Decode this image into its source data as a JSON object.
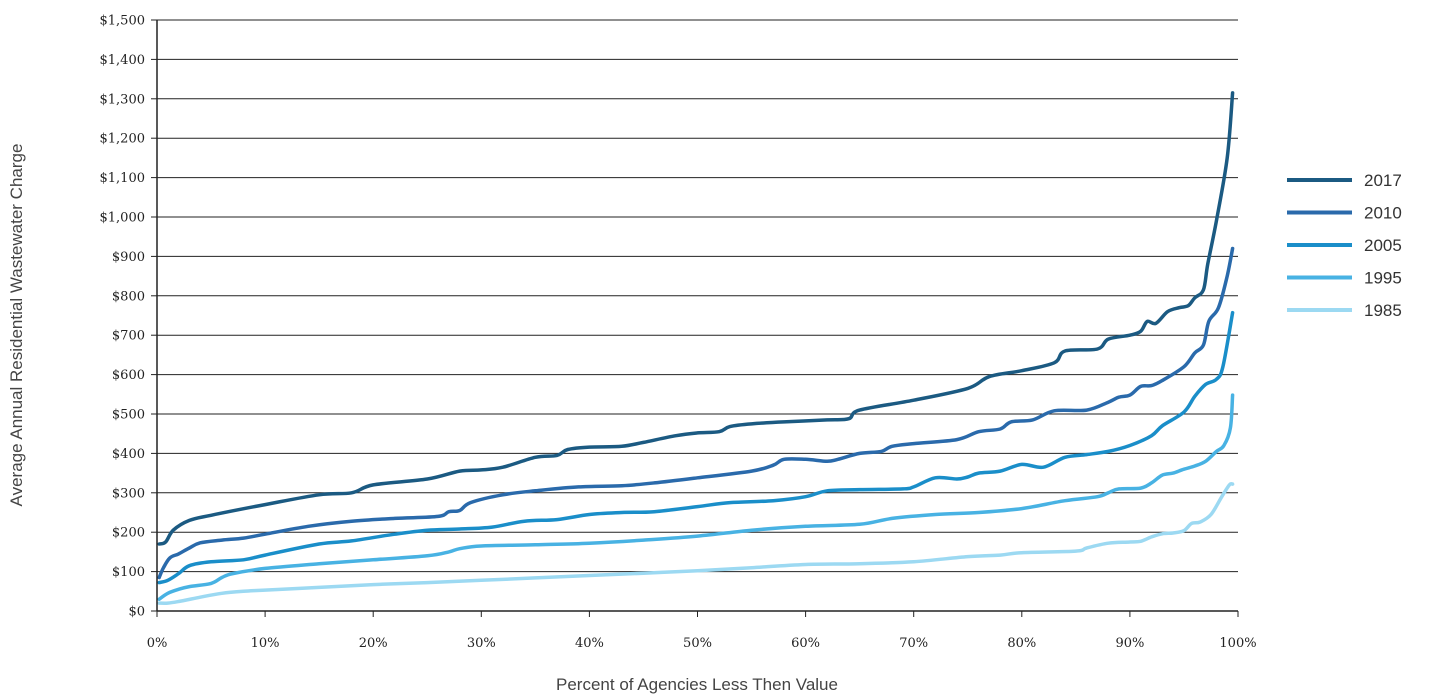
{
  "chart_data": {
    "type": "line",
    "xlabel": "Percent of Agencies Less Then Value",
    "ylabel": "Average Annual Residential Wastewater Charge",
    "xlim": [
      0,
      100
    ],
    "ylim": [
      0,
      1500
    ],
    "y_ticks": [
      0,
      100,
      200,
      300,
      400,
      500,
      600,
      700,
      800,
      900,
      1000,
      1100,
      1200,
      1300,
      1400,
      1500
    ],
    "y_tick_labels": [
      "$0",
      "$100",
      "$200",
      "$300",
      "$400",
      "$500",
      "$600",
      "$700",
      "$800",
      "$900",
      "$1,000",
      "$1,100",
      "$1,200",
      "$1,300",
      "$1,400",
      "$1,500"
    ],
    "x_ticks": [
      0,
      10,
      20,
      30,
      40,
      50,
      60,
      70,
      80,
      90,
      100
    ],
    "x_tick_labels": [
      "0%",
      "10%",
      "20%",
      "30%",
      "40%",
      "50%",
      "60%",
      "70%",
      "80%",
      "90%",
      "100%"
    ],
    "grid": "horizontal",
    "legend_position": "right",
    "series": [
      {
        "name": "2017",
        "color": "#1b5a82",
        "points": [
          [
            0.2,
            170
          ],
          [
            0.8,
            175
          ],
          [
            1.5,
            205
          ],
          [
            3,
            230
          ],
          [
            5,
            243
          ],
          [
            10,
            270
          ],
          [
            15,
            295
          ],
          [
            18,
            300
          ],
          [
            20,
            320
          ],
          [
            25,
            335
          ],
          [
            28,
            355
          ],
          [
            30,
            358
          ],
          [
            32,
            365
          ],
          [
            35,
            390
          ],
          [
            37,
            395
          ],
          [
            38,
            410
          ],
          [
            40,
            416
          ],
          [
            43,
            418
          ],
          [
            45,
            428
          ],
          [
            48,
            445
          ],
          [
            50,
            452
          ],
          [
            52,
            455
          ],
          [
            53,
            468
          ],
          [
            55,
            475
          ],
          [
            58,
            480
          ],
          [
            62,
            485
          ],
          [
            64,
            488
          ],
          [
            65,
            510
          ],
          [
            70,
            535
          ],
          [
            75,
            565
          ],
          [
            77,
            595
          ],
          [
            80,
            610
          ],
          [
            83,
            630
          ],
          [
            84,
            660
          ],
          [
            87,
            665
          ],
          [
            88,
            690
          ],
          [
            90,
            700
          ],
          [
            91,
            710
          ],
          [
            91.6,
            735
          ],
          [
            92.4,
            730
          ],
          [
            93.5,
            760
          ],
          [
            94.6,
            770
          ],
          [
            95.4,
            775
          ],
          [
            96,
            795
          ],
          [
            96.8,
            815
          ],
          [
            97.2,
            880
          ],
          [
            98,
            990
          ],
          [
            99,
            1150
          ],
          [
            99.5,
            1315
          ]
        ]
      },
      {
        "name": "2010",
        "color": "#2a6aab",
        "points": [
          [
            0.2,
            85
          ],
          [
            0.6,
            110
          ],
          [
            1.2,
            135
          ],
          [
            2,
            145
          ],
          [
            3,
            160
          ],
          [
            4,
            173
          ],
          [
            6,
            180
          ],
          [
            8,
            185
          ],
          [
            10,
            195
          ],
          [
            14,
            215
          ],
          [
            18,
            228
          ],
          [
            22,
            235
          ],
          [
            26,
            240
          ],
          [
            27,
            252
          ],
          [
            28,
            255
          ],
          [
            29,
            275
          ],
          [
            32,
            295
          ],
          [
            35,
            305
          ],
          [
            39,
            315
          ],
          [
            43,
            318
          ],
          [
            46,
            325
          ],
          [
            50,
            338
          ],
          [
            55,
            355
          ],
          [
            57,
            370
          ],
          [
            58,
            385
          ],
          [
            60,
            385
          ],
          [
            62,
            380
          ],
          [
            63,
            385
          ],
          [
            65,
            400
          ],
          [
            67,
            405
          ],
          [
            68,
            418
          ],
          [
            70,
            425
          ],
          [
            74,
            435
          ],
          [
            76,
            455
          ],
          [
            78,
            462
          ],
          [
            79,
            480
          ],
          [
            81,
            485
          ],
          [
            83,
            508
          ],
          [
            86,
            510
          ],
          [
            88,
            530
          ],
          [
            89,
            543
          ],
          [
            90,
            548
          ],
          [
            91,
            570
          ],
          [
            92,
            572
          ],
          [
            93,
            585
          ],
          [
            95,
            620
          ],
          [
            96,
            655
          ],
          [
            96.8,
            675
          ],
          [
            97.3,
            735
          ],
          [
            98.2,
            770
          ],
          [
            99,
            850
          ],
          [
            99.5,
            920
          ]
        ]
      },
      {
        "name": "2005",
        "color": "#1a8ec9",
        "points": [
          [
            0.2,
            72
          ],
          [
            1,
            78
          ],
          [
            2,
            95
          ],
          [
            3,
            115
          ],
          [
            5,
            125
          ],
          [
            8,
            130
          ],
          [
            10,
            142
          ],
          [
            15,
            170
          ],
          [
            18,
            178
          ],
          [
            22,
            195
          ],
          [
            25,
            205
          ],
          [
            28,
            208
          ],
          [
            31,
            213
          ],
          [
            34,
            228
          ],
          [
            37,
            232
          ],
          [
            40,
            245
          ],
          [
            43,
            250
          ],
          [
            46,
            252
          ],
          [
            50,
            265
          ],
          [
            53,
            275
          ],
          [
            57,
            280
          ],
          [
            60,
            290
          ],
          [
            62,
            305
          ],
          [
            65,
            308
          ],
          [
            69,
            310
          ],
          [
            70,
            315
          ],
          [
            72,
            338
          ],
          [
            74,
            335
          ],
          [
            75,
            340
          ],
          [
            76,
            350
          ],
          [
            78,
            355
          ],
          [
            80,
            372
          ],
          [
            82,
            365
          ],
          [
            84,
            390
          ],
          [
            86,
            397
          ],
          [
            88,
            405
          ],
          [
            90,
            420
          ],
          [
            92,
            445
          ],
          [
            93,
            470
          ],
          [
            95,
            505
          ],
          [
            96,
            545
          ],
          [
            97,
            575
          ],
          [
            98,
            588
          ],
          [
            98.6,
            620
          ],
          [
            99.5,
            757
          ]
        ]
      },
      {
        "name": "1995",
        "color": "#48b2e3",
        "points": [
          [
            0.2,
            30
          ],
          [
            1,
            45
          ],
          [
            2,
            55
          ],
          [
            3,
            62
          ],
          [
            5,
            70
          ],
          [
            6,
            85
          ],
          [
            7,
            95
          ],
          [
            10,
            108
          ],
          [
            15,
            120
          ],
          [
            20,
            130
          ],
          [
            25,
            140
          ],
          [
            27,
            150
          ],
          [
            28,
            158
          ],
          [
            30,
            165
          ],
          [
            35,
            168
          ],
          [
            40,
            172
          ],
          [
            45,
            180
          ],
          [
            50,
            190
          ],
          [
            55,
            205
          ],
          [
            60,
            215
          ],
          [
            65,
            220
          ],
          [
            68,
            235
          ],
          [
            72,
            245
          ],
          [
            76,
            250
          ],
          [
            80,
            260
          ],
          [
            84,
            280
          ],
          [
            87,
            290
          ],
          [
            88,
            300
          ],
          [
            89,
            310
          ],
          [
            91,
            312
          ],
          [
            92,
            325
          ],
          [
            93,
            345
          ],
          [
            94,
            350
          ],
          [
            95,
            360
          ],
          [
            96,
            368
          ],
          [
            97,
            380
          ],
          [
            98,
            405
          ],
          [
            98.7,
            420
          ],
          [
            99.3,
            465
          ],
          [
            99.5,
            548
          ]
        ]
      },
      {
        "name": "1985",
        "color": "#9cd9f2",
        "points": [
          [
            0.2,
            20
          ],
          [
            1,
            20
          ],
          [
            2,
            24
          ],
          [
            4,
            35
          ],
          [
            6,
            45
          ],
          [
            8,
            50
          ],
          [
            10,
            53
          ],
          [
            15,
            60
          ],
          [
            20,
            67
          ],
          [
            25,
            72
          ],
          [
            30,
            78
          ],
          [
            35,
            84
          ],
          [
            40,
            90
          ],
          [
            45,
            96
          ],
          [
            50,
            102
          ],
          [
            55,
            110
          ],
          [
            60,
            118
          ],
          [
            65,
            120
          ],
          [
            70,
            125
          ],
          [
            75,
            138
          ],
          [
            78,
            142
          ],
          [
            80,
            148
          ],
          [
            85,
            152
          ],
          [
            86,
            160
          ],
          [
            88,
            172
          ],
          [
            90,
            175
          ],
          [
            91,
            177
          ],
          [
            92,
            188
          ],
          [
            93,
            196
          ],
          [
            94,
            198
          ],
          [
            95,
            204
          ],
          [
            95.7,
            222
          ],
          [
            96.5,
            226
          ],
          [
            97.5,
            245
          ],
          [
            98.5,
            290
          ],
          [
            99.2,
            320
          ],
          [
            99.5,
            322
          ]
        ]
      }
    ]
  }
}
